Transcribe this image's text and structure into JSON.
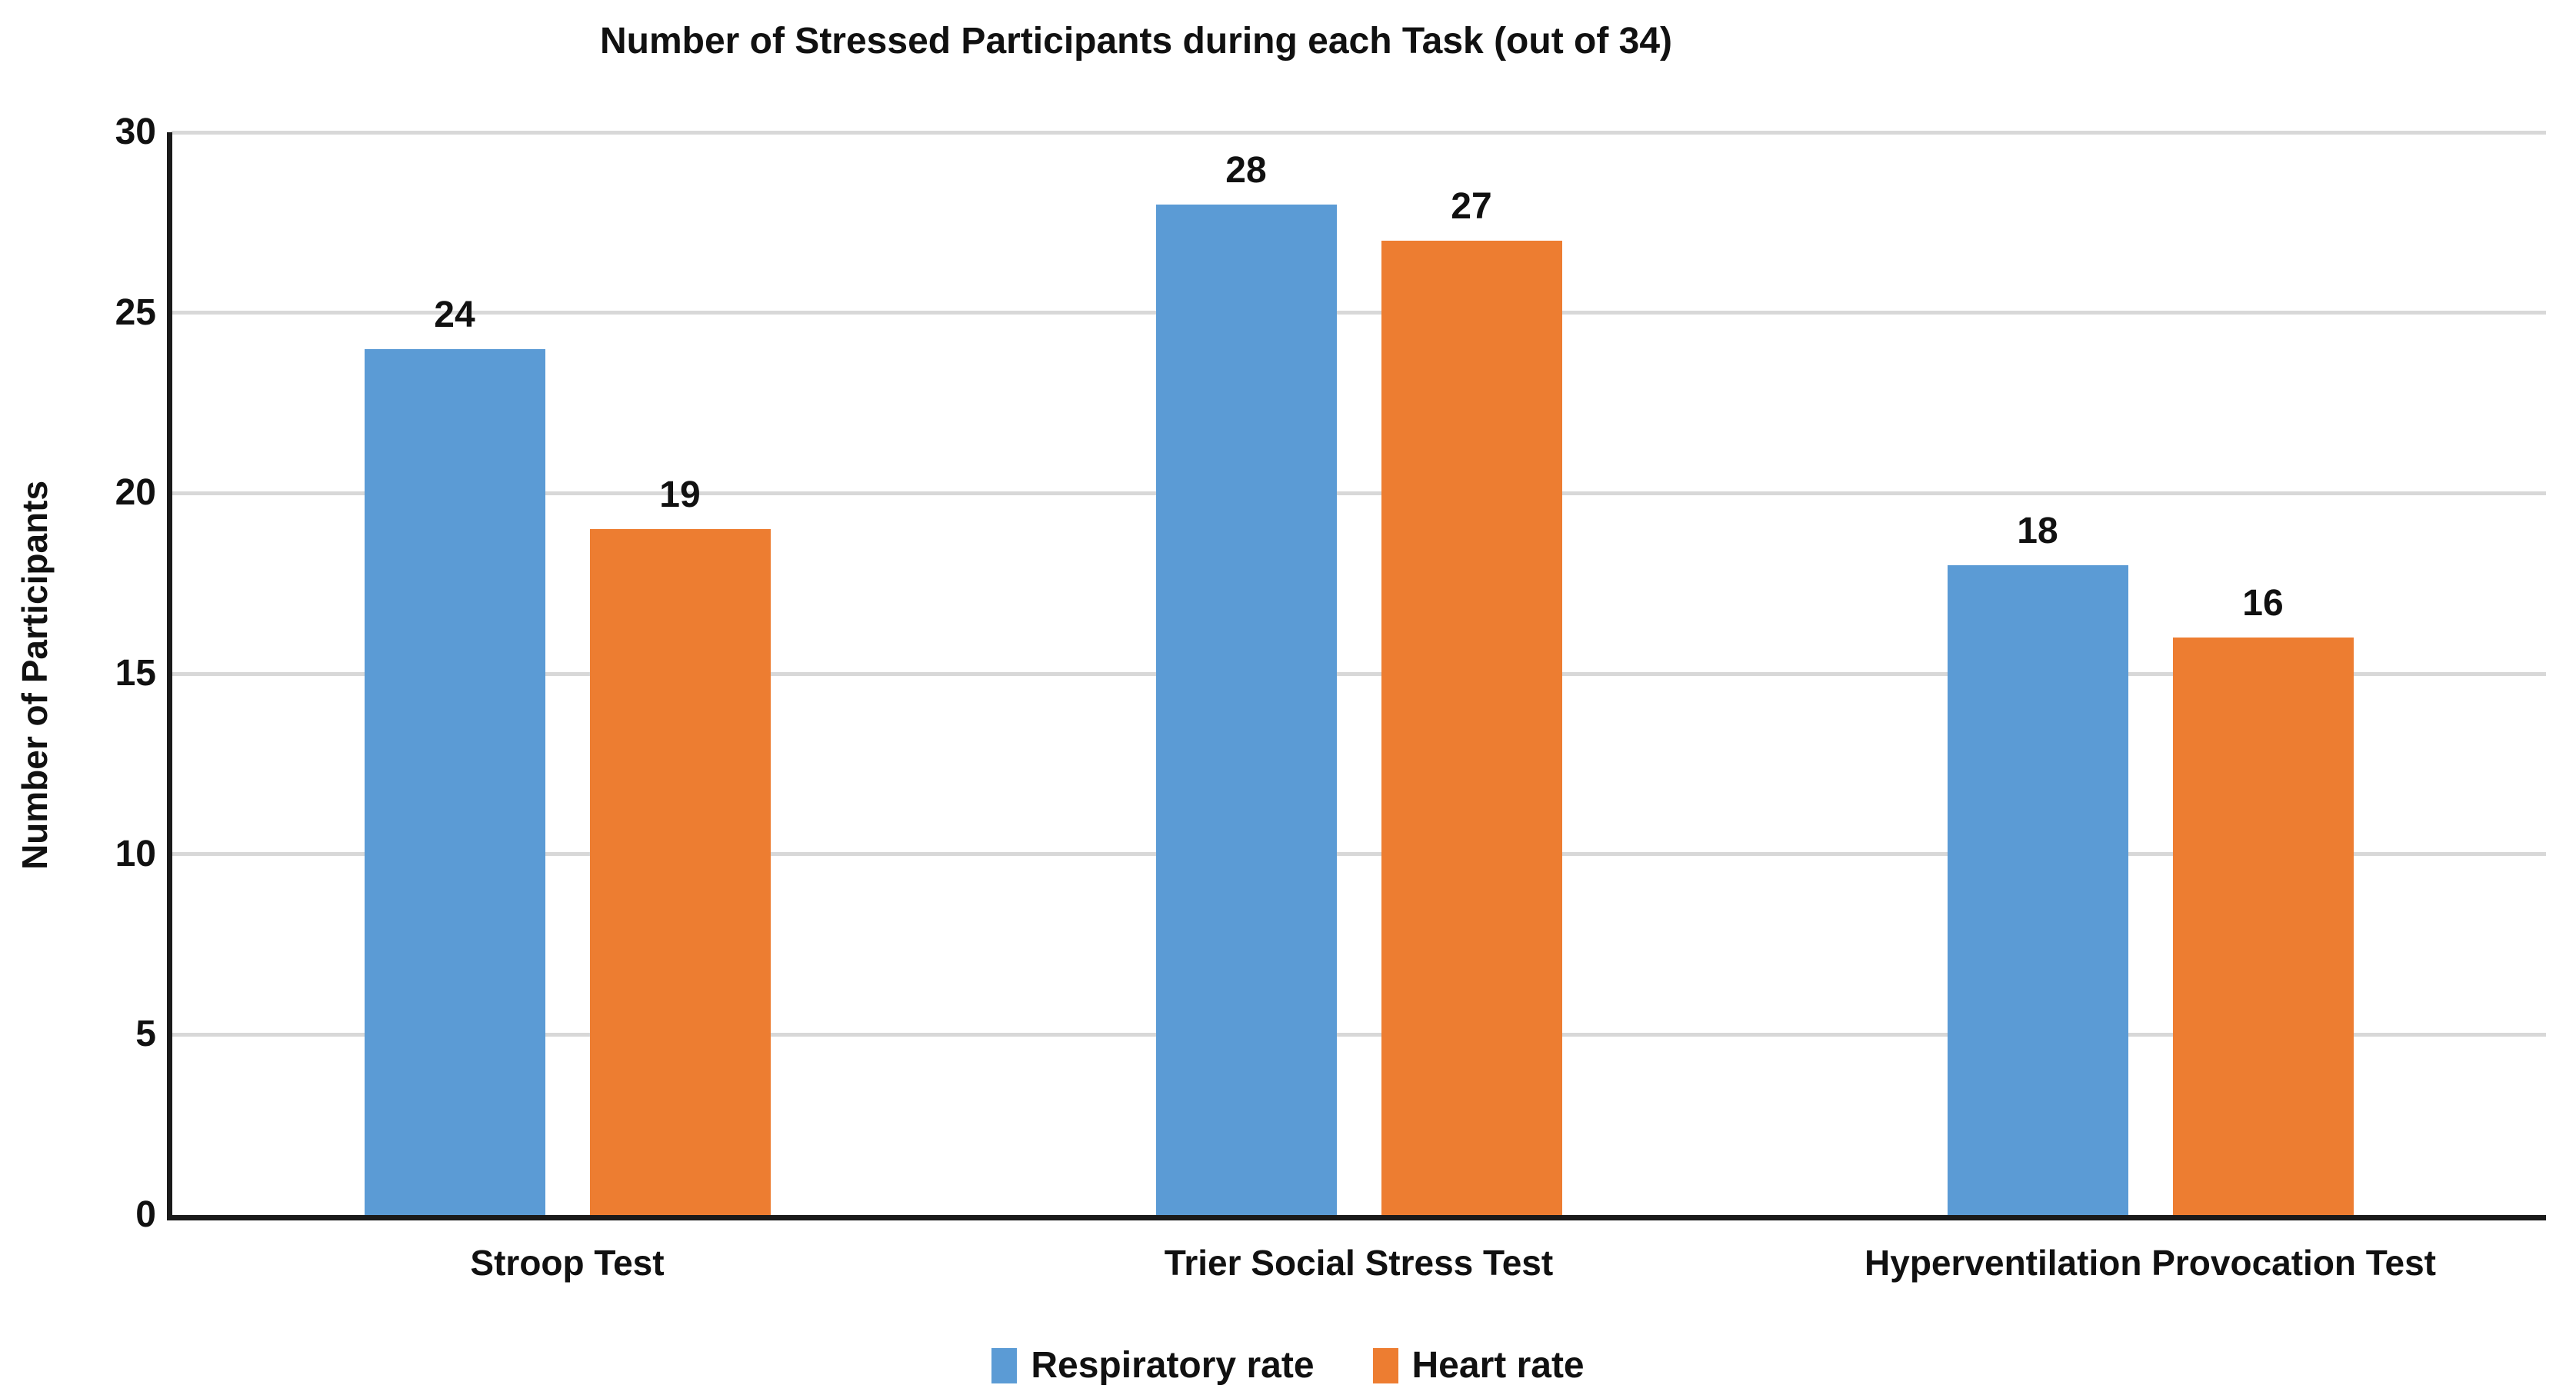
{
  "chart_data": {
    "type": "bar",
    "title": "Number of Stressed Participants during each Task (out of 34)",
    "xlabel": "",
    "ylabel": "Number of Participants",
    "categories": [
      "Stroop Test",
      "Trier Social Stress Test",
      "Hyperventilation Provocation Test"
    ],
    "series": [
      {
        "name": "Respiratory rate",
        "color": "#5B9BD5",
        "values": [
          24,
          28,
          18
        ]
      },
      {
        "name": "Heart rate",
        "color": "#ED7D31",
        "values": [
          19,
          27,
          16
        ]
      }
    ],
    "ylim": [
      0,
      30
    ],
    "yticks": [
      0,
      5,
      10,
      15,
      20,
      25,
      30
    ],
    "grid": true,
    "data_labels": true,
    "legend_position": "bottom",
    "colors": {
      "background": "#ffffff",
      "gridline": "#D8D8D8",
      "axis": "#1a1a1a",
      "text": "#111111"
    }
  }
}
